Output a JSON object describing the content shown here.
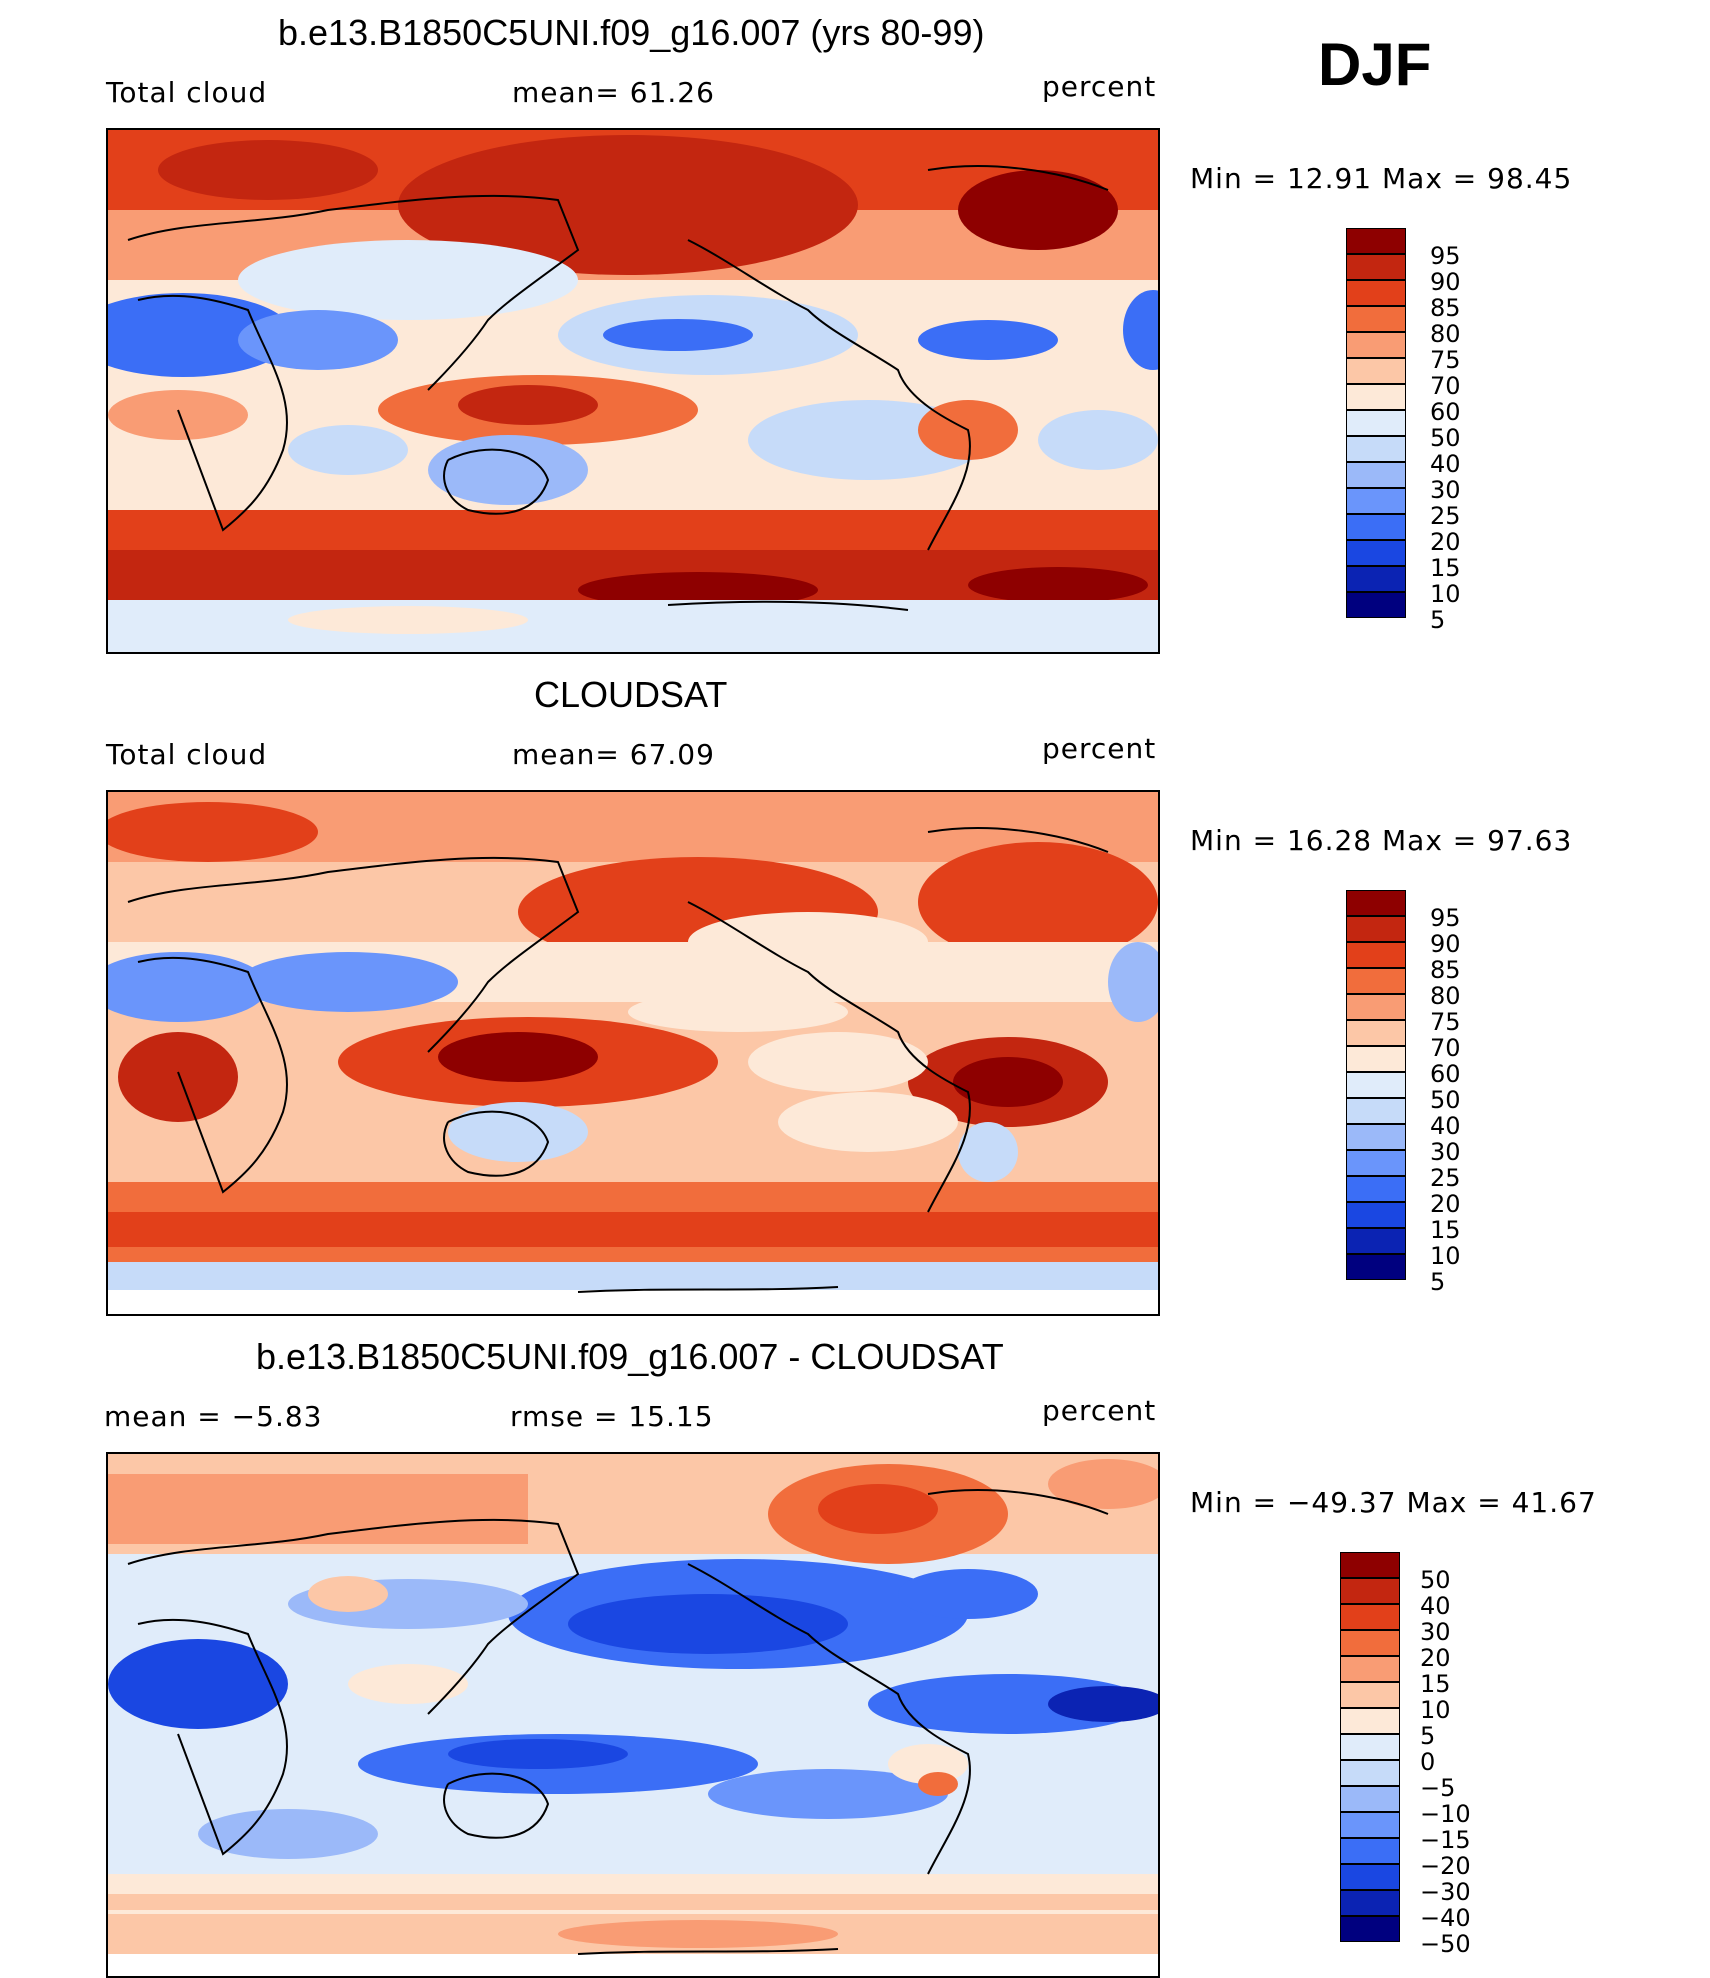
{
  "season": "DJF",
  "colors": {
    "model_obs_scale": [
      "#00007f",
      "#0b23b3",
      "#1a47e2",
      "#3b6ef6",
      "#6a95fb",
      "#9bb9f9",
      "#c6dbf9",
      "#e0ecfa",
      "#fde9d8",
      "#fcc7a7",
      "#f99c74",
      "#f16d3c",
      "#e2401a",
      "#c32610",
      "#8e0000"
    ],
    "diff_scale": [
      "#00007f",
      "#0b23b3",
      "#1a47e2",
      "#3b6ef6",
      "#6a95fb",
      "#9bb9f9",
      "#c6dbf9",
      "#e0ecfa",
      "#fde9d8",
      "#fcc7a7",
      "#f99c74",
      "#f16d3c",
      "#e2401a",
      "#c32610",
      "#8e0000"
    ]
  },
  "panels": [
    {
      "title": "b.e13.B1850C5UNI.f09_g16.007 (yrs 80-99)",
      "left_label": "Total cloud",
      "center_label": "mean=   61.26",
      "right_label": "percent",
      "minmax": "Min  =    12.91  Max  =    98.45",
      "colorbar_labels": [
        "95",
        "90",
        "85",
        "80",
        "75",
        "70",
        "60",
        "50",
        "40",
        "30",
        "25",
        "20",
        "15",
        "10",
        "5"
      ]
    },
    {
      "title": "CLOUDSAT",
      "left_label": "Total cloud",
      "center_label": "mean=   67.09",
      "right_label": "percent",
      "minmax": "Min  =    16.28  Max  =    97.63",
      "colorbar_labels": [
        "95",
        "90",
        "85",
        "80",
        "75",
        "70",
        "60",
        "50",
        "40",
        "30",
        "25",
        "20",
        "15",
        "10",
        "5"
      ]
    },
    {
      "title": "b.e13.B1850C5UNI.f09_g16.007 - CLOUDSAT",
      "left_label": "mean  =    −5.83",
      "center_label": "rmse  =    15.15",
      "right_label": "percent",
      "minmax": "Min  = −49.37  Max  =    41.67",
      "colorbar_labels": [
        "50",
        "40",
        "30",
        "20",
        "15",
        "10",
        "5",
        "0",
        "−5",
        "−10",
        "−15",
        "−20",
        "−30",
        "−40",
        "−50"
      ]
    }
  ]
}
